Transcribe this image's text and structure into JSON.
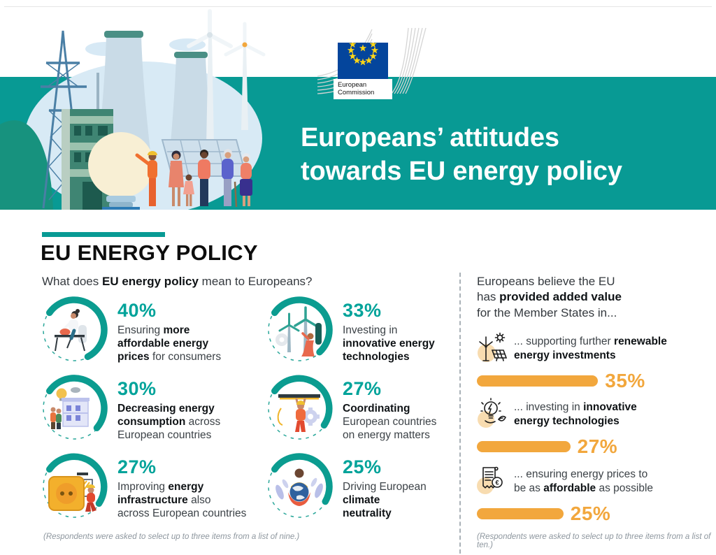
{
  "logo": {
    "line1": "European",
    "line2": "Commission"
  },
  "banner": {
    "title": "Europeans’ attitudes\ntowards EU energy policy",
    "bg_color": "#089a94"
  },
  "section": {
    "heading": "EU ENERGY POLICY",
    "question": [
      {
        "t": "What does ",
        "b": 0
      },
      {
        "t": "EU energy policy",
        "b": 1
      },
      {
        "t": " mean to Europeans?",
        "b": 0
      }
    ]
  },
  "stats": [
    {
      "pct": "40%",
      "value": 40,
      "icon": "consumer-at-desk-icon",
      "desc": [
        {
          "t": "Ensuring ",
          "b": 0
        },
        {
          "t": "more\naffordable energy\nprices",
          "b": 1
        },
        {
          "t": " for consumers",
          "b": 0
        }
      ]
    },
    {
      "pct": "30%",
      "value": 30,
      "icon": "house-energy-icon",
      "desc": [
        {
          "t": "Decreasing energy\nconsumption",
          "b": 1
        },
        {
          "t": " across\nEuropean countries",
          "b": 0
        }
      ]
    },
    {
      "pct": "27%",
      "value": 27,
      "icon": "power-socket-icon",
      "desc": [
        {
          "t": "Improving ",
          "b": 0
        },
        {
          "t": "energy\ninfrastructure",
          "b": 1
        },
        {
          "t": " also\nacross European countries",
          "b": 0
        }
      ]
    },
    {
      "pct": "33%",
      "value": 33,
      "icon": "wind-turbines-icon",
      "desc": [
        {
          "t": "Investing in\n",
          "b": 0
        },
        {
          "t": "innovative energy\ntechnologies",
          "b": 1
        }
      ]
    },
    {
      "pct": "27%",
      "value": 27,
      "icon": "coordination-icon",
      "desc": [
        {
          "t": "Coordinating",
          "b": 1
        },
        {
          "t": "\nEuropean countries\non energy matters",
          "b": 0
        }
      ]
    },
    {
      "pct": "25%",
      "value": 25,
      "icon": "climate-globe-icon",
      "desc": [
        {
          "t": "Driving European\n",
          "b": 0
        },
        {
          "t": "climate\nneutrality",
          "b": 1
        }
      ]
    }
  ],
  "added_value": {
    "intro": [
      {
        "t": "Europeans believe the EU\nhas ",
        "b": 0
      },
      {
        "t": "provided added value",
        "b": 1
      },
      {
        "t": "\nfor the Member States in...",
        "b": 0
      }
    ],
    "bar_color": "#f2a73d",
    "items": [
      {
        "pct": "35%",
        "value": 35,
        "icon": "renewable-energy-icon",
        "desc": [
          {
            "t": "... supporting further ",
            "b": 0
          },
          {
            "t": "renewable\nenergy investments",
            "b": 1
          }
        ]
      },
      {
        "pct": "27%",
        "value": 27,
        "icon": "innovative-bulb-icon",
        "desc": [
          {
            "t": "... investing in ",
            "b": 0
          },
          {
            "t": "innovative\nenergy technologies",
            "b": 1
          }
        ]
      },
      {
        "pct": "25%",
        "value": 25,
        "icon": "energy-bill-icon",
        "desc": [
          {
            "t": "... ensuring energy prices to\nbe as ",
            "b": 0
          },
          {
            "t": "affordable",
            "b": 1
          },
          {
            "t": " as possible",
            "b": 0
          }
        ]
      }
    ]
  },
  "footnotes": {
    "left": "(Respondents were asked to select up to three items from a list of nine.)",
    "right": "(Respondents were asked to select up to three items from a list of ten.)"
  },
  "colors": {
    "teal": "#089a94",
    "stat_teal": "#00a39a",
    "orange": "#f2a73d",
    "eu_blue": "#04459c",
    "star_yellow": "#ffd617"
  },
  "chart_data": [
    {
      "type": "pictogram-stats",
      "title": "What does EU energy policy mean to Europeans?",
      "categories": [
        "Ensuring more affordable energy prices for consumers",
        "Decreasing energy consumption across European countries",
        "Improving energy infrastructure also across European countries",
        "Investing in innovative energy technologies",
        "Coordinating European countries on energy matters",
        "Driving European climate neutrality"
      ],
      "values": [
        40,
        30,
        27,
        33,
        27,
        25
      ]
    },
    {
      "type": "bar",
      "title": "Europeans believe the EU has provided added value for the Member States in...",
      "categories": [
        "supporting further renewable energy investments",
        "investing in innovative energy technologies",
        "ensuring energy prices to be as affordable as possible"
      ],
      "values": [
        35,
        27,
        25
      ],
      "xlim": [
        0,
        40
      ]
    }
  ]
}
